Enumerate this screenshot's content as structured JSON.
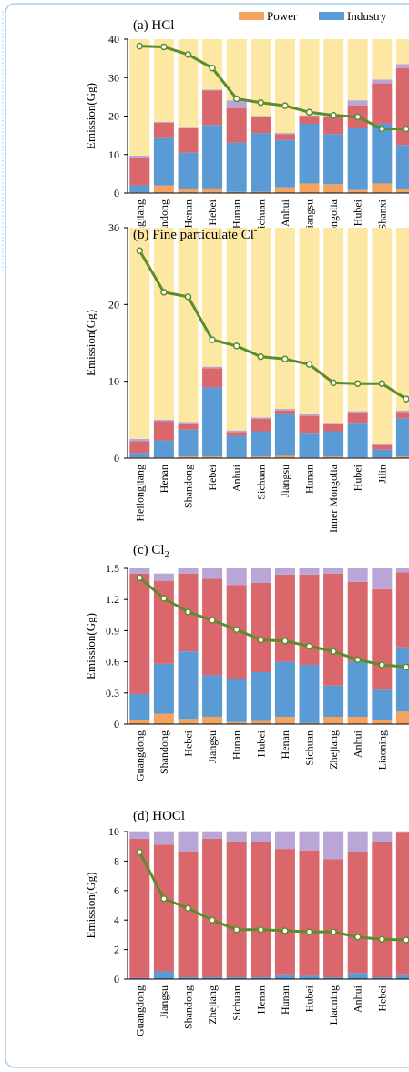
{
  "chart_data": [
    {
      "type": "bar",
      "stacked": true,
      "title": "(a) HCl",
      "y_label": "Emission(Gg)",
      "categories": [
        "Heilongjiang",
        "Shandong",
        "Henan",
        "Hebei",
        "Hunan",
        "Sichuan",
        "Anhui",
        "Jiangsu",
        "Inner Mongolia",
        "Hubei",
        "Shanxi",
        null
      ],
      "series": [
        {
          "name": "Power",
          "color": "#f4a35f",
          "values": [
            0.2,
            2,
            1,
            1.2,
            0.3,
            0.3,
            1.5,
            2.5,
            2.3,
            0.8,
            2.5,
            1
          ]
        },
        {
          "name": "Industry",
          "color": "#5b9bd5",
          "values": [
            1.8,
            12.5,
            9.5,
            16.5,
            12.8,
            15.3,
            12.3,
            15.5,
            13,
            16,
            15.5,
            11.5
          ]
        },
        {
          "color": "#d9676b",
          "values": [
            7.2,
            3.8,
            6.5,
            9,
            9,
            4.2,
            1.5,
            2,
            4.5,
            6,
            10.5,
            20
          ]
        },
        {
          "color": "#b9a5d6",
          "values": [
            0.5,
            0.2,
            0.2,
            0.2,
            2,
            0.2,
            0.3,
            0.2,
            0.2,
            1.3,
            1,
            1
          ]
        },
        {
          "color": "#fde8a3",
          "values": [
            30.3,
            21.5,
            22.8,
            13.1,
            15.9,
            20,
            24.4,
            19.8,
            20,
            15.9,
            10.5,
            6.5
          ]
        },
        {
          "type": "line",
          "color": "#5b8c2e",
          "values": [
            38.2,
            38,
            36,
            32.5,
            24.5,
            23.5,
            22.7,
            21,
            20.2,
            19.8,
            16.7,
            16.7
          ]
        }
      ],
      "ylim": [
        0,
        40
      ],
      "yticks": [
        0,
        10,
        20,
        30,
        40
      ],
      "legend": "top"
    },
    {
      "type": "bar",
      "stacked": true,
      "title": "(b) Fine particulate Cl",
      "title_sup": "-",
      "y_label": "Emission(Gg)",
      "categories": [
        "Heilongjiang",
        "Henan",
        "Shandong",
        "Hebei",
        "Anhui",
        "Sichuan",
        "Jiangsu",
        "Hunan",
        "Inner Mongolia",
        "Hubei",
        "Jilin",
        null
      ],
      "series": [
        {
          "color": "#f4a35f",
          "values": [
            0.1,
            0.1,
            0.2,
            0.2,
            0.1,
            0.2,
            0.3,
            0.1,
            0.2,
            0.1,
            0.1,
            0.2
          ]
        },
        {
          "color": "#5b9bd5",
          "values": [
            0.6,
            2.2,
            3.5,
            9,
            2.8,
            3.3,
            5.4,
            3.2,
            3.3,
            4.5,
            1,
            5
          ]
        },
        {
          "color": "#d9676b",
          "values": [
            1.5,
            2.5,
            0.8,
            2.5,
            0.5,
            1.6,
            0.5,
            2.2,
            0.9,
            1.3,
            0.6,
            0.8
          ]
        },
        {
          "color": "#b9a5d6",
          "values": [
            0.3,
            0.2,
            0.2,
            0.2,
            0.2,
            0.2,
            0.2,
            0.2,
            0.2,
            0.2,
            0.1,
            0.2
          ]
        },
        {
          "color": "#fde8a3",
          "values": [
            27.5,
            25,
            25.3,
            18.1,
            26.4,
            24.7,
            23.6,
            24.3,
            25.4,
            23.9,
            28.2,
            23.8
          ]
        },
        {
          "type": "line",
          "color": "#5b8c2e",
          "values": [
            27,
            21.6,
            21,
            15.4,
            14.6,
            13.2,
            12.9,
            12.2,
            9.8,
            9.7,
            9.7,
            7.7
          ]
        }
      ],
      "ylim": [
        0,
        30
      ],
      "yticks": [
        0,
        10,
        20,
        30
      ]
    },
    {
      "type": "bar",
      "stacked": true,
      "title": "(c) Cl",
      "title_sub": "2",
      "y_label": "Emission(Gg)",
      "categories": [
        "Guangdong",
        "Shandong",
        "Hebei",
        "Jiangsu",
        "Hunan",
        "Hubei",
        "Henan",
        "Sichuan",
        "Zhejiang",
        "Anhui",
        "Liaoning",
        null
      ],
      "series": [
        {
          "color": "#f4a35f",
          "values": [
            0.04,
            0.1,
            0.05,
            0.07,
            0.02,
            0.03,
            0.07,
            0.01,
            0.07,
            0.07,
            0.04,
            0.12
          ]
        },
        {
          "color": "#5b9bd5",
          "values": [
            0.25,
            0.48,
            0.65,
            0.4,
            0.41,
            0.47,
            0.53,
            0.56,
            0.3,
            0.53,
            0.29,
            0.62
          ]
        },
        {
          "color": "#d9676b",
          "values": [
            1.16,
            0.8,
            0.75,
            0.93,
            0.91,
            0.86,
            0.84,
            0.87,
            1.08,
            0.77,
            0.97,
            0.72
          ]
        },
        {
          "color": "#b9a5d6",
          "values": [
            0.05,
            0.07,
            0.05,
            0.1,
            0.16,
            0.14,
            0.06,
            0.06,
            0.05,
            0.13,
            0.2,
            0.04
          ]
        },
        {
          "type": "line",
          "color": "#5b8c2e",
          "values": [
            1.41,
            1.21,
            1.08,
            1,
            0.91,
            0.81,
            0.8,
            0.75,
            0.7,
            0.62,
            0.57,
            0.55
          ]
        }
      ],
      "ylim": [
        0,
        1.5
      ],
      "yticks": [
        0,
        0.3,
        0.6,
        0.9,
        1.2,
        1.5
      ]
    },
    {
      "type": "bar",
      "stacked": true,
      "title": "(d) HOCl",
      "y_label": "Emission(Gg)",
      "categories": [
        "Guangdong",
        "Jiangsu",
        "Shandong",
        "Zhejiang",
        "Sichuan",
        "Henan",
        "Hunan",
        "Hubei",
        "Liaoning",
        "Anhui",
        "Hebei",
        null
      ],
      "series": [
        {
          "color": "#f4a35f",
          "values": [
            0.02,
            0.02,
            0.02,
            0.02,
            0.02,
            0.02,
            0.02,
            0.02,
            0.02,
            0.02,
            0.02,
            0.02
          ]
        },
        {
          "color": "#5b9bd5",
          "values": [
            0.05,
            0.5,
            0.1,
            0.1,
            0.1,
            0.1,
            0.3,
            0.2,
            0.1,
            0.4,
            0.1,
            0.3
          ]
        },
        {
          "color": "#d9676b",
          "values": [
            9.45,
            8.6,
            8.5,
            9.4,
            9.2,
            9.2,
            8.5,
            8.5,
            8,
            8.2,
            9.2,
            9.6
          ]
        },
        {
          "color": "#b9a5d6",
          "values": [
            0.5,
            0.9,
            1.4,
            0.5,
            0.7,
            0.7,
            1.2,
            1.3,
            1.9,
            1.4,
            0.7,
            0.1
          ]
        },
        {
          "type": "line",
          "color": "#5b8c2e",
          "values": [
            8.6,
            5.45,
            4.8,
            4,
            3.35,
            3.35,
            3.28,
            3.2,
            3.2,
            2.85,
            2.7,
            2.65
          ]
        }
      ],
      "ylim": [
        0,
        10
      ],
      "yticks": [
        0,
        2,
        4,
        6,
        8,
        10
      ]
    }
  ]
}
